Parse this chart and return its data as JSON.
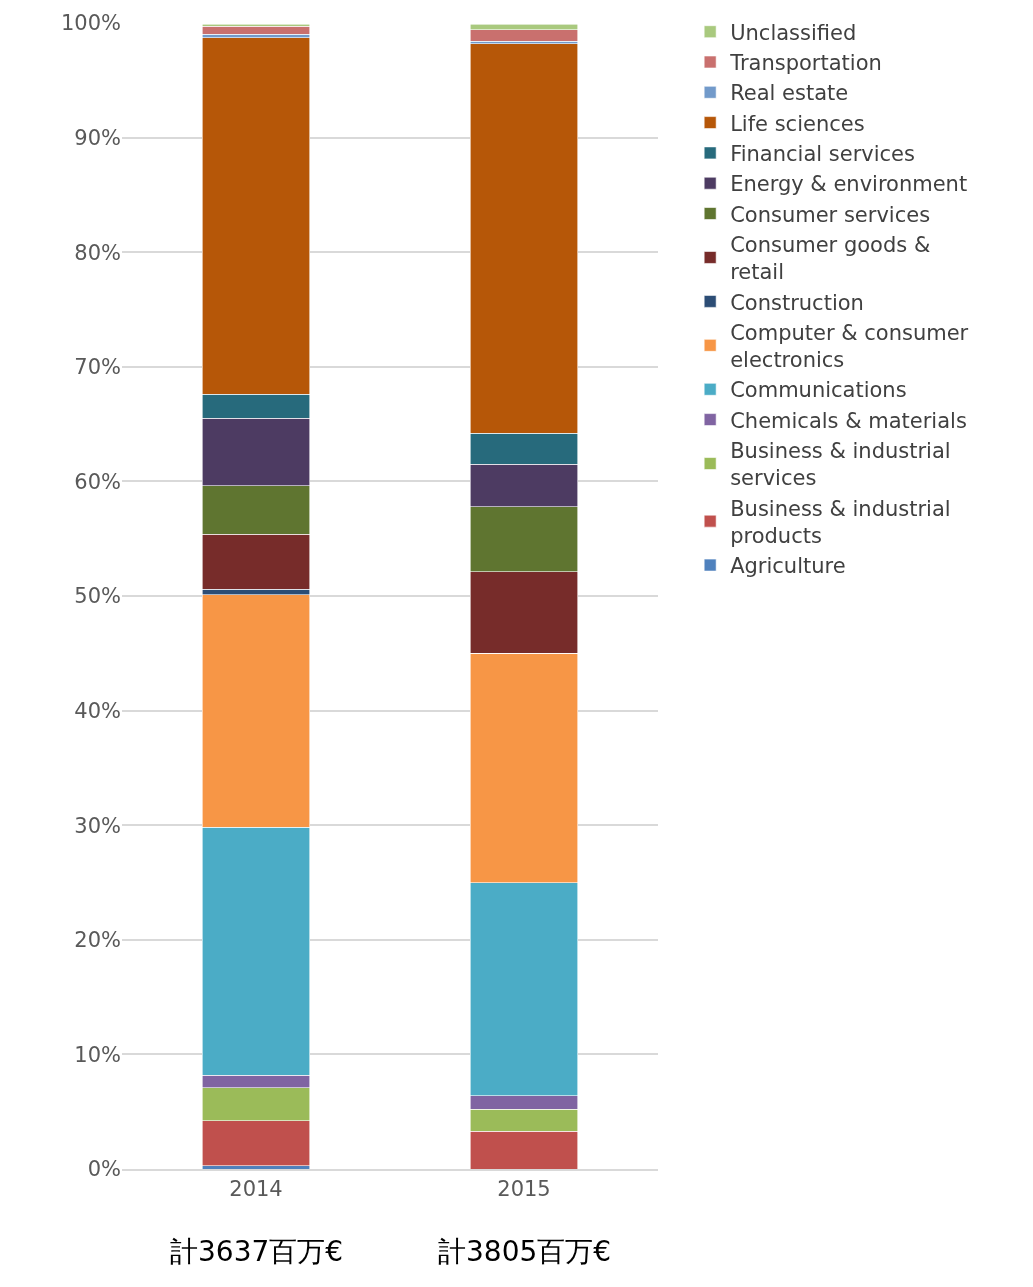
{
  "chart_data": {
    "type": "bar",
    "stacked": true,
    "categories": [
      "2014",
      "2015"
    ],
    "series": [
      {
        "name": "Agriculture",
        "color": "#4f81bd",
        "values": [
          0.3,
          null
        ]
      },
      {
        "name": "Business & industrial products",
        "color": "#c0504d",
        "values": [
          3.9,
          3.3
        ]
      },
      {
        "name": "Business & industrial services",
        "color": "#9bbb59",
        "values": [
          2.9,
          1.9
        ]
      },
      {
        "name": "Chemicals & materials",
        "color": "#8064a2",
        "values": [
          1.1,
          1.2
        ]
      },
      {
        "name": "Communications",
        "color": "#4bacc6",
        "values": [
          21.6,
          18.6
        ]
      },
      {
        "name": "Computer & consumer electronics",
        "color": "#f79646",
        "values": [
          20.3,
          20.0
        ]
      },
      {
        "name": "Construction",
        "color": "#2c4d75",
        "values": [
          0.5,
          0.0
        ]
      },
      {
        "name": "Consumer goods & retail",
        "color": "#772c2a",
        "values": [
          4.8,
          7.1
        ]
      },
      {
        "name": "Consumer services",
        "color": "#5f7530",
        "values": [
          4.2,
          5.7
        ]
      },
      {
        "name": "Energy & environment",
        "color": "#4d3b62",
        "values": [
          5.9,
          3.7
        ]
      },
      {
        "name": "Financial services",
        "color": "#276a7c",
        "values": [
          2.1,
          2.7
        ]
      },
      {
        "name": "Life sciences",
        "color": "#b65708",
        "values": [
          31.1,
          34.0
        ]
      },
      {
        "name": "Real estate",
        "color": "#729aca",
        "values": [
          0.3,
          0.2
        ]
      },
      {
        "name": "Transportation",
        "color": "#c9706e",
        "values": [
          0.7,
          1.0
        ]
      },
      {
        "name": "Unclassified",
        "color": "#a9c97e",
        "values": [
          0.2,
          0.5
        ]
      }
    ],
    "ylim": [
      0,
      100
    ],
    "yticks": [
      {
        "value": 0,
        "label": "0%"
      },
      {
        "value": 10,
        "label": "10%"
      },
      {
        "value": 20,
        "label": "20%"
      },
      {
        "value": 30,
        "label": "30%"
      },
      {
        "value": 40,
        "label": "40%"
      },
      {
        "value": 50,
        "label": "50%"
      },
      {
        "value": 60,
        "label": "60%"
      },
      {
        "value": 70,
        "label": "70%"
      },
      {
        "value": 80,
        "label": "80%"
      },
      {
        "value": 90,
        "label": "90%"
      },
      {
        "value": 100,
        "label": "100%"
      }
    ],
    "annotations": [
      "計3637百万€",
      "計3805百万€"
    ],
    "grid": "y",
    "legend": "right"
  }
}
